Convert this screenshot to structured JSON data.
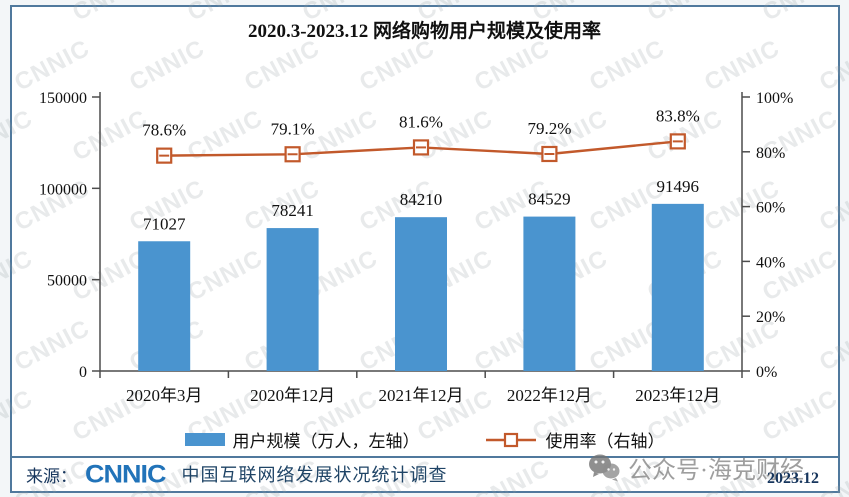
{
  "title": "2020.3-2023.12 网络购物用户规模及使用率",
  "watermark": {
    "text": "CNNIC",
    "badge_text": "公众号·海克财经"
  },
  "chart_data": {
    "type": "bar",
    "title": "2020.3-2023.12 网络购物用户规模及使用率",
    "categories": [
      "2020年3月",
      "2020年12月",
      "2021年12月",
      "2022年12月",
      "2023年12月"
    ],
    "series": [
      {
        "name": "用户规模（万人，左轴）",
        "type": "bar",
        "axis": "left",
        "values": [
          71027,
          78241,
          84210,
          84529,
          91496
        ],
        "labels": [
          "71027",
          "78241",
          "84210",
          "84529",
          "91496"
        ],
        "color": "#4A94CF"
      },
      {
        "name": "使用率（右轴）",
        "type": "line",
        "axis": "right",
        "values": [
          78.6,
          79.1,
          81.6,
          79.2,
          83.8
        ],
        "labels": [
          "78.6%",
          "79.1%",
          "81.6%",
          "79.2%",
          "83.8%"
        ],
        "color": "#C2592B"
      }
    ],
    "left_axis": {
      "min": 0,
      "max": 150000,
      "ticks": [
        "150000",
        "100000",
        "50000",
        "0"
      ]
    },
    "right_axis": {
      "min": 0,
      "max": 100,
      "ticks": [
        "100%",
        "80%",
        "60%",
        "40%",
        "20%",
        "0%"
      ]
    },
    "grid": false,
    "legend_position": "bottom"
  },
  "legend": {
    "items": [
      {
        "label": "用户规模（万人，左轴）"
      },
      {
        "label": "使用率（右轴）"
      }
    ]
  },
  "footer": {
    "source_label": "来源：",
    "logo_text": "CNNIC",
    "survey_text": "中国互联网络发展状况统计调查",
    "date": "2023.12"
  },
  "colors": {
    "bar": "#4A94CF",
    "line": "#C2592B",
    "border": "#50799D",
    "axis": "#4d4d4d",
    "text": "#111111",
    "footer_text": "#17365D",
    "logo_blue": "#2173B9"
  }
}
